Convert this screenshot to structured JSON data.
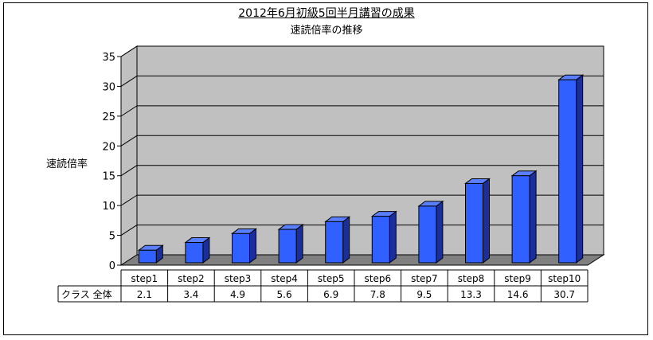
{
  "chart_data": {
    "type": "bar",
    "title": "2012年6月初級5回半月講習の成果",
    "subtitle": "速読倍率の推移",
    "ylabel": "速読倍率",
    "xlabel": "",
    "ylim": [
      0,
      35
    ],
    "yticks": [
      0,
      5,
      10,
      15,
      20,
      25,
      30,
      35
    ],
    "grid": true,
    "categories": [
      "step1",
      "step2",
      "step3",
      "step4",
      "step5",
      "step6",
      "step7",
      "step8",
      "step9",
      "step10"
    ],
    "series": [
      {
        "name": "クラス 全体",
        "values": [
          2.1,
          3.4,
          4.9,
          5.6,
          6.9,
          7.8,
          9.5,
          13.3,
          14.6,
          30.7
        ],
        "labels": [
          "2.1",
          "3.4",
          "4.9",
          "5.6",
          "6.9",
          "7.8",
          "9.5",
          "13.3",
          "14.6",
          "30.7"
        ],
        "color": "#3060ff"
      }
    ],
    "colors": {
      "bar_front": "#3060ff",
      "bar_side": "#1a2f9c",
      "bar_top": "#5a80ff",
      "wall": "#c0c0c0",
      "floor": "#808080"
    }
  }
}
